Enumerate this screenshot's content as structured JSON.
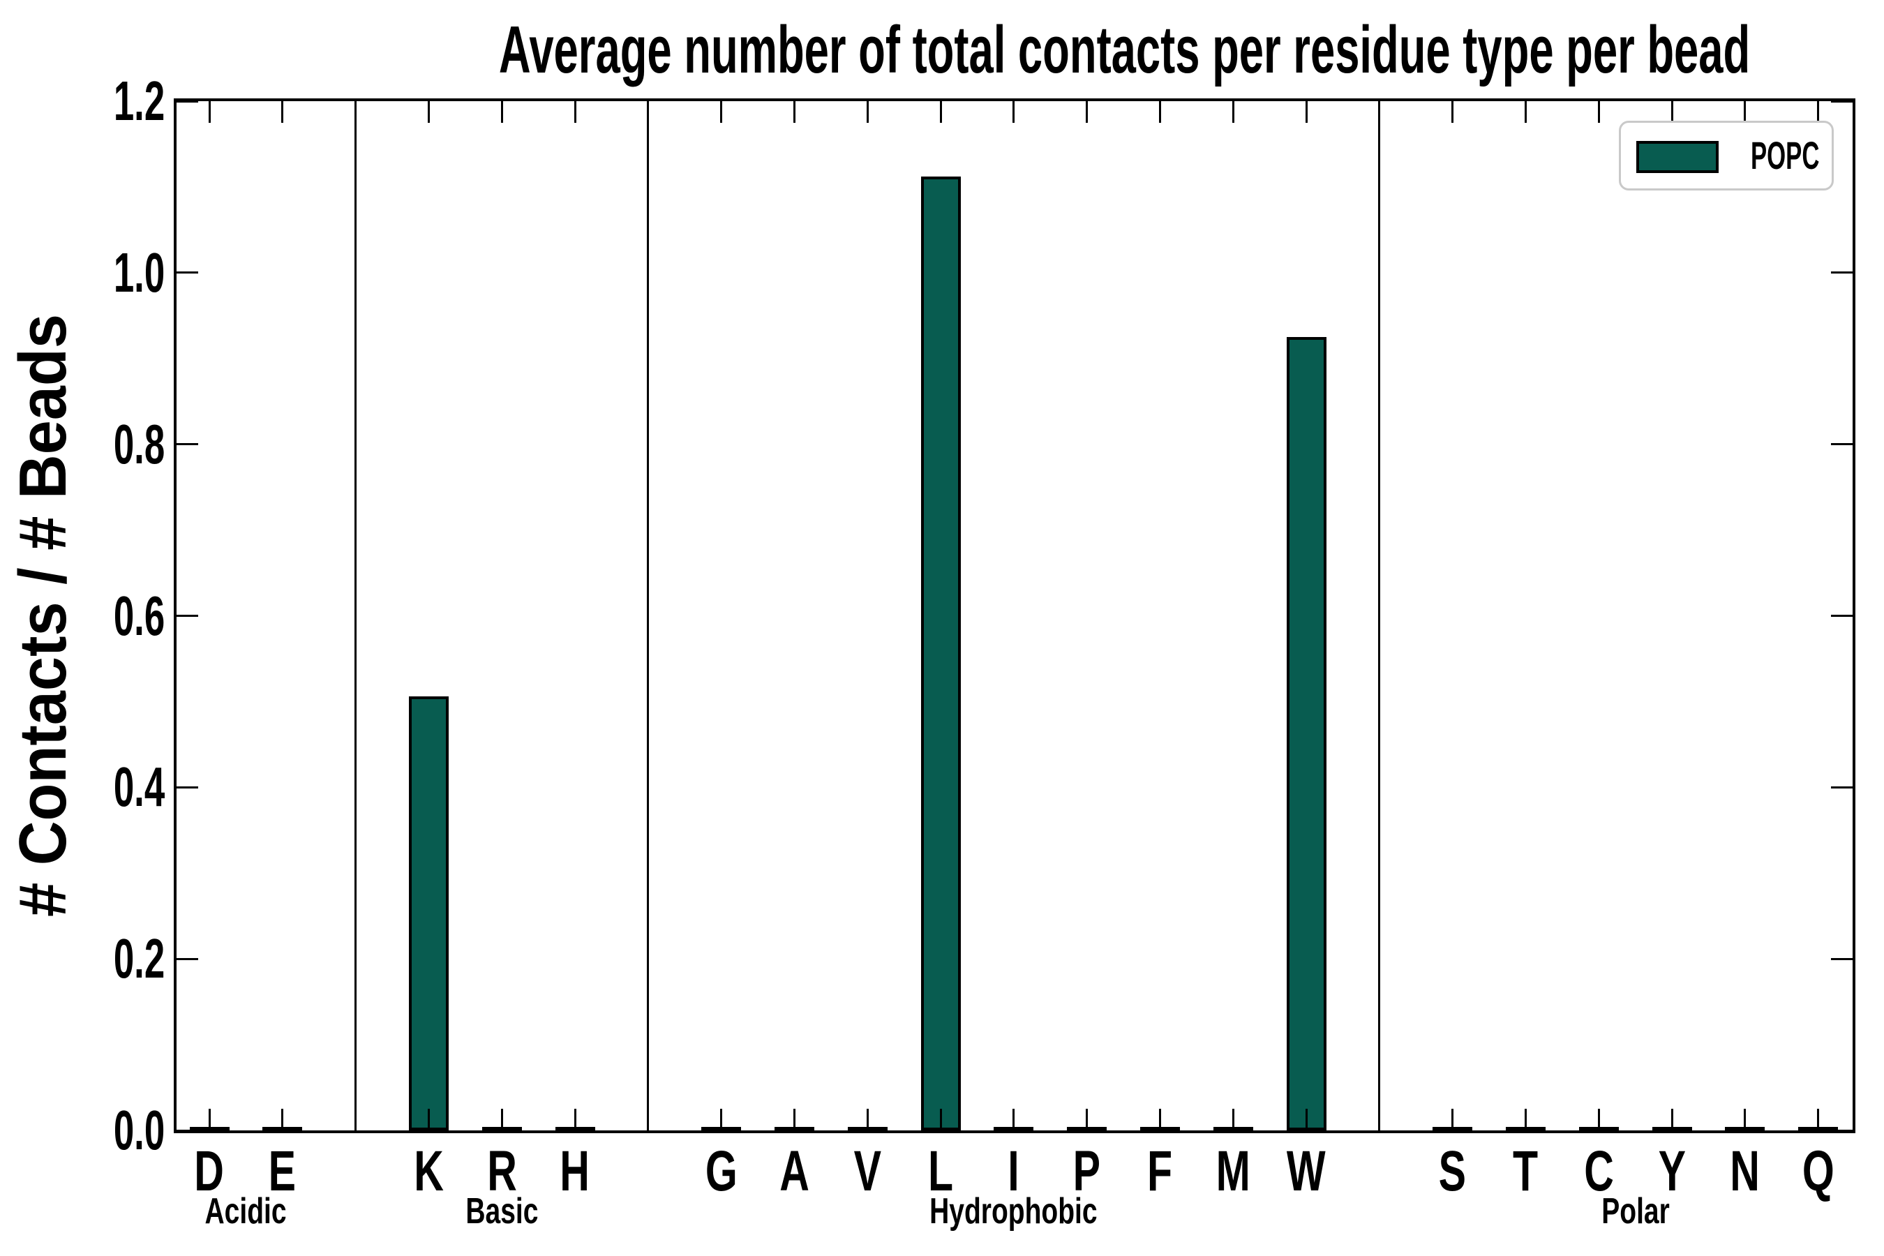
{
  "colors": {
    "bar_fill": "#085c50",
    "bar_edge": "#000000",
    "axis": "#000000",
    "text": "#000000",
    "legend_border": "#c9c9c9",
    "background": "#ffffff"
  },
  "legend": {
    "label": "POPC"
  },
  "chart_data": {
    "type": "bar",
    "title": "Average number of total contacts per residue type per bead",
    "xlabel": "",
    "ylabel": "# Contacts / # Beads",
    "ylim": [
      0,
      1.2
    ],
    "yticks": [
      "0.0",
      "0.2",
      "0.4",
      "0.6",
      "0.8",
      "1.0",
      "1.2"
    ],
    "grid": false,
    "legend": {
      "position": "upper right",
      "entries": [
        "POPC"
      ]
    },
    "categories": [
      "D",
      "E",
      "K",
      "R",
      "H",
      "G",
      "A",
      "V",
      "L",
      "I",
      "P",
      "F",
      "M",
      "W",
      "S",
      "T",
      "C",
      "Y",
      "N",
      "Q"
    ],
    "series": [
      {
        "name": "POPC",
        "color": "#085c50",
        "values": [
          0.002,
          0.002,
          0.506,
          0.003,
          0.003,
          0.003,
          0.003,
          0.004,
          1.112,
          0.003,
          0.004,
          0.003,
          0.003,
          0.925,
          0.003,
          0.003,
          0.003,
          0.004,
          0.003,
          0.003
        ]
      }
    ],
    "groups": [
      {
        "label": "Acidic",
        "residues": [
          "D",
          "E"
        ]
      },
      {
        "label": "Basic",
        "residues": [
          "K",
          "R",
          "H"
        ]
      },
      {
        "label": "Hydrophobic",
        "residues": [
          "G",
          "A",
          "V",
          "L",
          "I",
          "P",
          "F",
          "M",
          "W"
        ]
      },
      {
        "label": "Polar",
        "residues": [
          "S",
          "T",
          "C",
          "Y",
          "N",
          "Q"
        ]
      }
    ]
  }
}
